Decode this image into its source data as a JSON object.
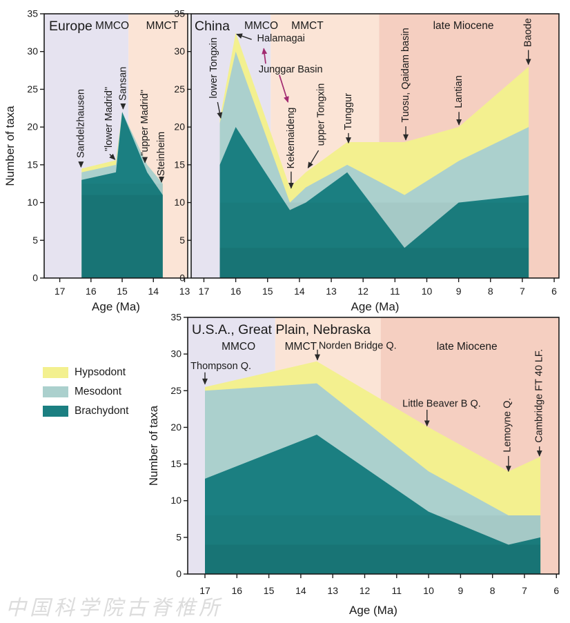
{
  "watermark": "中国科学院古脊椎所",
  "legend": {
    "items": [
      {
        "label": "Hypsodont",
        "color": "#f3f08f"
      },
      {
        "label": "Mesodont",
        "color": "#abd0cd"
      },
      {
        "label": "Brachydont",
        "color": "#1b7f81"
      }
    ]
  },
  "colors": {
    "hypsodont": "#f3f08f",
    "mesodont": "#abd0cd",
    "brachydont": "#1b7f81",
    "mmco_band": "#e6e3f0",
    "mmct_band": "#fbe4d6",
    "late_miocene_band": "#f5cfc1",
    "epoch_text": "#2b5cb0",
    "junggar_text": "#a12a70",
    "axis": "#1a1a1a"
  },
  "chart_data": [
    {
      "type": "area",
      "title": "Europe",
      "xlabel": "Age (Ma)",
      "ylabel": "Number of taxa",
      "x_range": [
        17.5,
        12.9
      ],
      "y_range": [
        0,
        35
      ],
      "x_ticks": [
        17,
        16,
        15,
        14,
        13
      ],
      "y_ticks": [
        0,
        5,
        10,
        15,
        20,
        25,
        30,
        35
      ],
      "grid": false,
      "bands": [
        {
          "label": "MMCO",
          "from": 17.5,
          "to": 14.8,
          "color": "#e6e3f0",
          "label_age": 15.32
        },
        {
          "label": "MMCT",
          "from": 14.8,
          "to": 12.9,
          "color": "#fbe4d6",
          "label_age": 13.72
        }
      ],
      "x": [
        16.3,
        15.2,
        15.0,
        14.2,
        13.7
      ],
      "series": [
        {
          "name": "Brachydont",
          "color": "#1b7f81",
          "tops": [
            13,
            14,
            22,
            14,
            11
          ]
        },
        {
          "name": "Mesodont",
          "color": "#abd0cd",
          "tops": [
            14,
            15,
            22,
            15,
            12.5
          ]
        },
        {
          "name": "Hypsodont",
          "color": "#f3f08f",
          "tops": [
            14.5,
            15.6,
            22,
            15,
            12.5
          ]
        }
      ],
      "annotations": [
        {
          "text": "Sandelzhausen",
          "rot": true,
          "tx": 16.32,
          "ty": 15.9,
          "arrow": [
            16.32,
            15.4,
            16.32,
            14.7
          ]
        },
        {
          "text": "\"lower Madrid\"",
          "rot": true,
          "tx": 15.42,
          "ty": 16.8,
          "arrow": [
            15.4,
            16.4,
            15.23,
            15.7
          ]
        },
        {
          "text": "Sansan",
          "rot": true,
          "tx": 14.97,
          "ty": 23.5,
          "arrow": [
            14.97,
            23.1,
            14.97,
            22.4
          ]
        },
        {
          "text": "\"upper Madrid\"",
          "rot": true,
          "tx": 14.27,
          "ty": 16.2,
          "arrow": [
            14.27,
            15.9,
            14.27,
            15.3
          ]
        },
        {
          "text": "Steinheim",
          "rot": true,
          "tx": 13.74,
          "ty": 13.5,
          "arrow": [
            13.74,
            13.2,
            13.74,
            12.7
          ]
        }
      ]
    },
    {
      "type": "area",
      "title": "China",
      "xlabel": "Age (Ma)",
      "ylabel": "",
      "x_range": [
        17.4,
        5.85
      ],
      "y_range": [
        0,
        35
      ],
      "x_ticks": [
        17,
        16,
        15,
        14,
        13,
        12,
        11,
        10,
        9,
        8,
        7,
        6
      ],
      "y_ticks": [
        0,
        5,
        10,
        15,
        20,
        25,
        30,
        35
      ],
      "grid": false,
      "bands": [
        {
          "label": "MMCO",
          "from": 17.4,
          "to": 14.9,
          "color": "#e6e3f0",
          "label_age": 15.2
        },
        {
          "label": "MMCT",
          "from": 14.9,
          "to": 11.5,
          "color": "#fbe4d6",
          "label_age": 13.75
        },
        {
          "label": "late Miocene",
          "from": 11.5,
          "to": 5.85,
          "color": "#f5cfc1",
          "label_age": 8.85
        }
      ],
      "x": [
        16.5,
        16.0,
        14.3,
        13.8,
        12.5,
        10.7,
        9.0,
        6.8
      ],
      "series": [
        {
          "name": "Brachydont",
          "color": "#1b7f81",
          "tops": [
            15,
            20,
            9,
            10,
            14,
            4,
            10,
            11
          ]
        },
        {
          "name": "Mesodont",
          "color": "#abd0cd",
          "tops": [
            20.5,
            30,
            10,
            12,
            15,
            11,
            15.5,
            20
          ]
        },
        {
          "name": "Hypsodont",
          "color": "#f3f08f",
          "tops": [
            21,
            32.5,
            12,
            14,
            18,
            18,
            20,
            28
          ]
        }
      ],
      "annotations": [
        {
          "text": "lower Tongxin",
          "rot": true,
          "tx": 16.68,
          "ty": 23.8,
          "arrow": [
            16.57,
            23.3,
            16.47,
            21.2
          ]
        },
        {
          "text": "Halamagai",
          "rot": false,
          "tx": 15.33,
          "ty": 31.7,
          "arrow": [
            15.5,
            31.6,
            15.97,
            32.3
          ]
        },
        {
          "text": "Junggar Basin",
          "rot": false,
          "tx": 15.28,
          "ty": 27.6,
          "color": "#a12a70",
          "arrows": [
            [
              15.06,
              28.4,
              15.12,
              30.4
            ],
            [
              14.63,
              26.9,
              14.36,
              23.3
            ]
          ]
        },
        {
          "text": "Kekemaideng",
          "rot": true,
          "tx": 14.26,
          "ty": 14.5,
          "arrow": [
            14.26,
            14.1,
            14.26,
            11.9
          ]
        },
        {
          "text": "upper Tongxin",
          "rot": true,
          "tx": 13.32,
          "ty": 17.5,
          "arrow": [
            13.4,
            16.9,
            13.73,
            14.6
          ]
        },
        {
          "text": "Tunggur",
          "rot": true,
          "tx": 12.46,
          "ty": 19.6,
          "arrow": [
            12.46,
            19.2,
            12.46,
            17.9
          ]
        },
        {
          "text": "Tuosu, Qaidam basin",
          "rot": true,
          "tx": 10.66,
          "ty": 20.6,
          "arrow": [
            10.66,
            20.1,
            10.66,
            18.3
          ]
        },
        {
          "text": "Lantian",
          "rot": true,
          "tx": 8.99,
          "ty": 22.5,
          "arrow": [
            8.99,
            22.0,
            8.99,
            20.3
          ]
        },
        {
          "text": "Baode",
          "rot": true,
          "tx": 6.81,
          "ty": 30.6,
          "arrow": [
            6.81,
            30.2,
            6.81,
            28.3
          ]
        }
      ]
    },
    {
      "type": "area",
      "title": "U.S.A., Great Plain, Nebraska",
      "xlabel": "Age (Ma)",
      "ylabel": "Number of taxa",
      "x_range": [
        17.54,
        5.92
      ],
      "y_range": [
        0,
        35
      ],
      "x_ticks": [
        17,
        16,
        15,
        14,
        13,
        12,
        11,
        10,
        9,
        8,
        7,
        6
      ],
      "y_ticks": [
        0,
        5,
        10,
        15,
        20,
        25,
        30,
        35
      ],
      "grid": false,
      "bands": [
        {
          "label": "MMCO",
          "from": 17.54,
          "to": 14.8,
          "color": "#e6e3f0",
          "label_age": 15.95
        },
        {
          "label": "MMCT",
          "from": 14.8,
          "to": 11.5,
          "color": "#fbe4d6",
          "label_age": 14.0
        },
        {
          "label": "late Miocene",
          "from": 11.5,
          "to": 5.92,
          "color": "#f5cfc1",
          "label_age": 8.8
        }
      ],
      "x": [
        17.0,
        13.5,
        10.0,
        7.5,
        6.5
      ],
      "series": [
        {
          "name": "Brachydont",
          "color": "#1b7f81",
          "tops": [
            13,
            19,
            8.5,
            4,
            5
          ]
        },
        {
          "name": "Mesodont",
          "color": "#abd0cd",
          "tops": [
            25,
            26,
            14,
            8,
            8
          ]
        },
        {
          "name": "Hypsodont",
          "color": "#f3f08f",
          "tops": [
            25.5,
            29,
            20,
            14,
            16
          ]
        }
      ],
      "annotations": [
        {
          "text": "Thompson Q.",
          "rot": false,
          "tx": 17.45,
          "ty": 28.3,
          "arrow": [
            17.0,
            27.5,
            17.0,
            25.9
          ]
        },
        {
          "text": "Norden Bridge Q.",
          "rot": false,
          "tx": 13.44,
          "ty": 31.1,
          "arrow": [
            13.48,
            30.6,
            13.48,
            29.2
          ]
        },
        {
          "text": "Little Beaver B Q.",
          "rot": false,
          "tx": 10.82,
          "ty": 23.2,
          "arrow": [
            10.05,
            22.4,
            10.05,
            20.2
          ]
        },
        {
          "text": "Lemoyne Q.",
          "rot": true,
          "tx": 7.53,
          "ty": 16.6,
          "arrow": [
            7.5,
            16.1,
            7.5,
            14.0
          ]
        },
        {
          "text": "Cambridge FT 40 LF.",
          "rot": true,
          "tx": 6.53,
          "ty": 17.9,
          "arrow": [
            6.53,
            17.4,
            6.53,
            16.1
          ]
        }
      ]
    }
  ]
}
